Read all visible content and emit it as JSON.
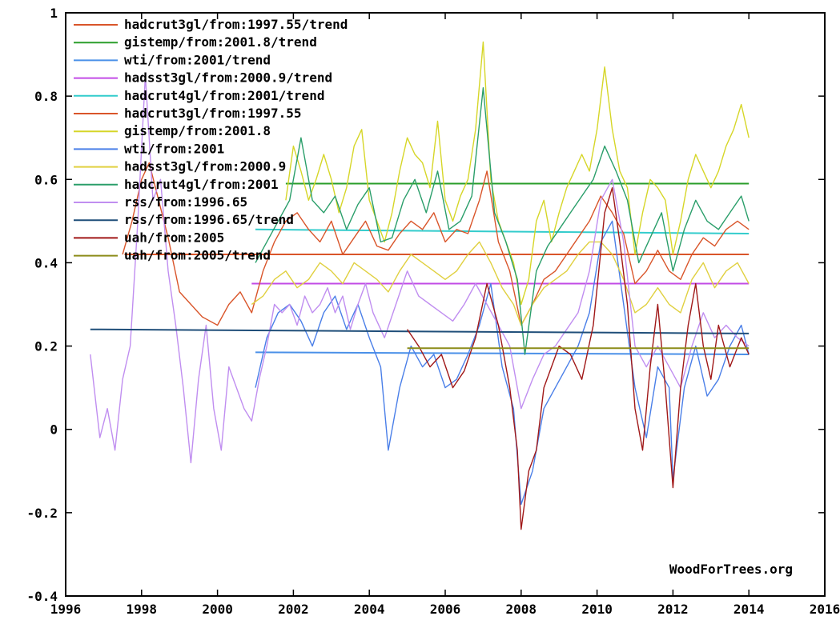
{
  "chart_data": {
    "type": "line",
    "title": "",
    "xlabel": "",
    "ylabel": "",
    "xlim": [
      1996,
      2016
    ],
    "ylim": [
      -0.4,
      1
    ],
    "x_ticks": [
      1996,
      1998,
      2000,
      2002,
      2004,
      2006,
      2008,
      2010,
      2012,
      2014,
      2016
    ],
    "y_ticks": [
      -0.4,
      -0.2,
      0,
      0.2,
      0.4,
      0.6,
      0.8,
      1
    ],
    "y_tick_labels": [
      "-0.4",
      "-0.2",
      "0",
      "0.2",
      "0.4",
      "0.6",
      "0.8",
      "1"
    ],
    "grid": false,
    "legend_position": "top-left",
    "watermark": "WoodForTrees.org",
    "series": [
      {
        "name": "hadcrut3gl/from:1997.55/trend",
        "color": "#d9552a",
        "kind": "trend",
        "x": [
          1997.55,
          2014.0
        ],
        "y": [
          0.42,
          0.42
        ]
      },
      {
        "name": "gistemp/from:2001.8/trend",
        "color": "#2a9e2a",
        "kind": "trend",
        "x": [
          2001.8,
          2014.0
        ],
        "y": [
          0.59,
          0.59
        ]
      },
      {
        "name": "wti/from:2001/trend",
        "color": "#4a90e8",
        "kind": "trend",
        "x": [
          2001.0,
          2014.0
        ],
        "y": [
          0.185,
          0.18
        ]
      },
      {
        "name": "hadsst3gl/from:2000.9/trend",
        "color": "#c24be6",
        "kind": "trend",
        "x": [
          2000.9,
          2014.0
        ],
        "y": [
          0.35,
          0.35
        ]
      },
      {
        "name": "hadcrut4gl/from:2001/trend",
        "color": "#33cccc",
        "kind": "trend",
        "x": [
          2001.0,
          2014.0
        ],
        "y": [
          0.48,
          0.47
        ]
      },
      {
        "name": "hadcrut3gl/from:1997.55",
        "color": "#d9552a",
        "kind": "data",
        "x": [
          1997.5,
          1997.75,
          1998.0,
          1998.2,
          1998.45,
          1998.7,
          1999.0,
          1999.3,
          1999.6,
          2000.0,
          2000.3,
          2000.6,
          2000.9,
          2001.2,
          2001.5,
          2001.8,
          2002.1,
          2002.4,
          2002.7,
          2003.0,
          2003.3,
          2003.6,
          2003.9,
          2004.2,
          2004.5,
          2004.8,
          2005.1,
          2005.4,
          2005.7,
          2006.0,
          2006.3,
          2006.6,
          2006.9,
          2007.1,
          2007.4,
          2007.7,
          2008.0,
          2008.3,
          2008.6,
          2008.9,
          2009.2,
          2009.5,
          2009.8,
          2010.1,
          2010.4,
          2010.7,
          2011.0,
          2011.3,
          2011.6,
          2011.9,
          2012.2,
          2012.5,
          2012.8,
          2013.1,
          2013.4,
          2013.7,
          2014.0
        ],
        "y": [
          0.42,
          0.5,
          0.6,
          0.64,
          0.55,
          0.46,
          0.33,
          0.3,
          0.27,
          0.25,
          0.3,
          0.33,
          0.28,
          0.38,
          0.45,
          0.5,
          0.52,
          0.48,
          0.45,
          0.5,
          0.42,
          0.46,
          0.5,
          0.44,
          0.43,
          0.47,
          0.5,
          0.48,
          0.52,
          0.45,
          0.48,
          0.47,
          0.55,
          0.62,
          0.45,
          0.38,
          0.25,
          0.3,
          0.36,
          0.38,
          0.42,
          0.46,
          0.5,
          0.56,
          0.52,
          0.47,
          0.35,
          0.38,
          0.43,
          0.38,
          0.36,
          0.42,
          0.46,
          0.44,
          0.48,
          0.5,
          0.48
        ]
      },
      {
        "name": "gistemp/from:2001.8",
        "color": "#d6d628",
        "kind": "data",
        "x": [
          2001.8,
          2002.0,
          2002.2,
          2002.4,
          2002.6,
          2002.8,
          2003.0,
          2003.2,
          2003.4,
          2003.6,
          2003.8,
          2004.0,
          2004.2,
          2004.4,
          2004.6,
          2004.8,
          2005.0,
          2005.2,
          2005.4,
          2005.6,
          2005.8,
          2006.0,
          2006.2,
          2006.4,
          2006.6,
          2006.8,
          2007.0,
          2007.2,
          2007.4,
          2007.6,
          2007.8,
          2008.0,
          2008.2,
          2008.4,
          2008.6,
          2008.8,
          2009.0,
          2009.2,
          2009.4,
          2009.6,
          2009.8,
          2010.0,
          2010.2,
          2010.4,
          2010.6,
          2010.8,
          2011.0,
          2011.2,
          2011.4,
          2011.6,
          2011.8,
          2012.0,
          2012.2,
          2012.4,
          2012.6,
          2012.8,
          2013.0,
          2013.2,
          2013.4,
          2013.6,
          2013.8,
          2014.0
        ],
        "y": [
          0.55,
          0.68,
          0.62,
          0.55,
          0.6,
          0.66,
          0.6,
          0.52,
          0.58,
          0.68,
          0.72,
          0.55,
          0.5,
          0.45,
          0.52,
          0.62,
          0.7,
          0.66,
          0.64,
          0.58,
          0.74,
          0.55,
          0.5,
          0.56,
          0.6,
          0.72,
          0.93,
          0.6,
          0.5,
          0.45,
          0.4,
          0.3,
          0.36,
          0.5,
          0.55,
          0.45,
          0.52,
          0.58,
          0.62,
          0.66,
          0.62,
          0.72,
          0.87,
          0.72,
          0.62,
          0.58,
          0.42,
          0.52,
          0.6,
          0.58,
          0.55,
          0.42,
          0.5,
          0.6,
          0.66,
          0.62,
          0.58,
          0.62,
          0.68,
          0.72,
          0.78,
          0.7
        ]
      },
      {
        "name": "wti/from:2001",
        "color": "#4a7fe8",
        "kind": "data",
        "x": [
          2001.0,
          2001.3,
          2001.6,
          2001.9,
          2002.2,
          2002.5,
          2002.8,
          2003.1,
          2003.4,
          2003.7,
          2004.0,
          2004.3,
          2004.5,
          2004.8,
          2005.1,
          2005.4,
          2005.7,
          2006.0,
          2006.3,
          2006.6,
          2006.9,
          2007.2,
          2007.5,
          2007.8,
          2008.0,
          2008.3,
          2008.6,
          2008.9,
          2009.2,
          2009.5,
          2009.8,
          2010.1,
          2010.4,
          2010.7,
          2011.0,
          2011.3,
          2011.6,
          2011.9,
          2012.0,
          2012.3,
          2012.6,
          2012.9,
          2013.2,
          2013.5,
          2013.8,
          2014.0
        ],
        "y": [
          0.1,
          0.22,
          0.28,
          0.3,
          0.26,
          0.2,
          0.28,
          0.32,
          0.24,
          0.3,
          0.22,
          0.15,
          -0.05,
          0.1,
          0.2,
          0.15,
          0.18,
          0.1,
          0.12,
          0.18,
          0.25,
          0.35,
          0.15,
          0.05,
          -0.18,
          -0.1,
          0.05,
          0.1,
          0.15,
          0.2,
          0.28,
          0.45,
          0.5,
          0.3,
          0.1,
          -0.02,
          0.15,
          0.1,
          -0.12,
          0.1,
          0.2,
          0.08,
          0.12,
          0.2,
          0.25,
          0.18
        ]
      },
      {
        "name": "hadsst3gl/from:2000.9",
        "color": "#e0d040",
        "kind": "data",
        "x": [
          2000.9,
          2001.2,
          2001.5,
          2001.8,
          2002.1,
          2002.4,
          2002.7,
          2003.0,
          2003.3,
          2003.6,
          2003.9,
          2004.2,
          2004.5,
          2004.8,
          2005.1,
          2005.4,
          2005.7,
          2006.0,
          2006.3,
          2006.6,
          2006.9,
          2007.2,
          2007.5,
          2007.8,
          2008.0,
          2008.3,
          2008.6,
          2008.9,
          2009.2,
          2009.5,
          2009.8,
          2010.1,
          2010.4,
          2010.7,
          2011.0,
          2011.3,
          2011.6,
          2011.9,
          2012.2,
          2012.5,
          2012.8,
          2013.1,
          2013.4,
          2013.7,
          2014.0
        ],
        "y": [
          0.3,
          0.32,
          0.36,
          0.38,
          0.34,
          0.36,
          0.4,
          0.38,
          0.35,
          0.4,
          0.38,
          0.36,
          0.33,
          0.38,
          0.42,
          0.4,
          0.38,
          0.36,
          0.38,
          0.42,
          0.45,
          0.4,
          0.34,
          0.3,
          0.25,
          0.3,
          0.34,
          0.36,
          0.38,
          0.42,
          0.45,
          0.45,
          0.42,
          0.36,
          0.28,
          0.3,
          0.34,
          0.3,
          0.28,
          0.36,
          0.4,
          0.34,
          0.38,
          0.4,
          0.35
        ]
      },
      {
        "name": "hadcrut4gl/from:2001",
        "color": "#2a9e6a",
        "kind": "data",
        "x": [
          2001.0,
          2001.3,
          2001.6,
          2001.9,
          2002.2,
          2002.5,
          2002.8,
          2003.1,
          2003.4,
          2003.7,
          2004.0,
          2004.3,
          2004.6,
          2004.9,
          2005.2,
          2005.5,
          2005.8,
          2006.1,
          2006.4,
          2006.7,
          2007.0,
          2007.3,
          2007.6,
          2007.9,
          2008.1,
          2008.4,
          2008.7,
          2009.0,
          2009.3,
          2009.6,
          2009.9,
          2010.2,
          2010.5,
          2010.8,
          2011.1,
          2011.4,
          2011.7,
          2012.0,
          2012.3,
          2012.6,
          2012.9,
          2013.2,
          2013.5,
          2013.8,
          2014.0
        ],
        "y": [
          0.4,
          0.45,
          0.5,
          0.55,
          0.7,
          0.55,
          0.52,
          0.56,
          0.48,
          0.54,
          0.58,
          0.45,
          0.46,
          0.55,
          0.6,
          0.52,
          0.62,
          0.48,
          0.5,
          0.56,
          0.82,
          0.52,
          0.45,
          0.36,
          0.18,
          0.38,
          0.44,
          0.48,
          0.52,
          0.56,
          0.6,
          0.68,
          0.62,
          0.55,
          0.4,
          0.46,
          0.52,
          0.38,
          0.48,
          0.55,
          0.5,
          0.48,
          0.52,
          0.56,
          0.5
        ]
      },
      {
        "name": "rss/from:1996.65",
        "color": "#c08ef0",
        "kind": "data",
        "x": [
          1996.65,
          1996.9,
          1997.1,
          1997.3,
          1997.5,
          1997.7,
          1997.9,
          1998.1,
          1998.3,
          1998.5,
          1998.7,
          1998.9,
          1999.1,
          1999.3,
          1999.5,
          1999.7,
          1999.9,
          2000.1,
          2000.3,
          2000.5,
          2000.7,
          2000.9,
          2001.1,
          2001.3,
          2001.5,
          2001.7,
          2001.9,
          2002.1,
          2002.3,
          2002.5,
          2002.7,
          2002.9,
          2003.1,
          2003.3,
          2003.5,
          2003.7,
          2003.9,
          2004.1,
          2004.4,
          2004.7,
          2005.0,
          2005.3,
          2005.6,
          2005.9,
          2006.2,
          2006.5,
          2006.8,
          2007.1,
          2007.4,
          2007.7,
          2008.0,
          2008.3,
          2008.6,
          2008.9,
          2009.2,
          2009.5,
          2009.8,
          2010.1,
          2010.4,
          2010.7,
          2011.0,
          2011.3,
          2011.6,
          2011.9,
          2012.2,
          2012.5,
          2012.8,
          2013.1,
          2013.4,
          2013.7,
          2014.0
        ],
        "y": [
          0.18,
          -0.02,
          0.05,
          -0.05,
          0.12,
          0.2,
          0.5,
          0.85,
          0.55,
          0.6,
          0.38,
          0.25,
          0.1,
          -0.08,
          0.12,
          0.25,
          0.05,
          -0.05,
          0.15,
          0.1,
          0.05,
          0.02,
          0.12,
          0.2,
          0.3,
          0.28,
          0.3,
          0.25,
          0.32,
          0.28,
          0.3,
          0.34,
          0.28,
          0.32,
          0.24,
          0.3,
          0.35,
          0.28,
          0.22,
          0.3,
          0.38,
          0.32,
          0.3,
          0.28,
          0.26,
          0.3,
          0.35,
          0.3,
          0.25,
          0.2,
          0.05,
          0.12,
          0.18,
          0.2,
          0.24,
          0.28,
          0.38,
          0.55,
          0.6,
          0.45,
          0.2,
          0.15,
          0.2,
          0.15,
          0.1,
          0.2,
          0.28,
          0.22,
          0.25,
          0.22,
          0.2
        ]
      },
      {
        "name": "rss/from:1996.65/trend",
        "color": "#1f4e79",
        "kind": "trend",
        "x": [
          1996.65,
          2014.0
        ],
        "y": [
          0.24,
          0.23
        ]
      },
      {
        "name": "uah/from:2005",
        "color": "#a01818",
        "kind": "data",
        "x": [
          2005.0,
          2005.3,
          2005.6,
          2005.9,
          2006.2,
          2006.5,
          2006.8,
          2007.1,
          2007.4,
          2007.7,
          2007.9,
          2008.0,
          2008.2,
          2008.4,
          2008.6,
          2008.8,
          2009.0,
          2009.3,
          2009.6,
          2009.9,
          2010.2,
          2010.4,
          2010.6,
          2010.8,
          2011.0,
          2011.2,
          2011.4,
          2011.6,
          2011.8,
          2012.0,
          2012.2,
          2012.4,
          2012.6,
          2012.8,
          2013.0,
          2013.2,
          2013.5,
          2013.8,
          2014.0
        ],
        "y": [
          0.24,
          0.2,
          0.15,
          0.18,
          0.1,
          0.14,
          0.22,
          0.35,
          0.25,
          0.1,
          -0.05,
          -0.24,
          -0.1,
          -0.05,
          0.1,
          0.15,
          0.2,
          0.18,
          0.12,
          0.25,
          0.52,
          0.58,
          0.45,
          0.3,
          0.05,
          -0.05,
          0.15,
          0.3,
          0.1,
          -0.14,
          0.1,
          0.25,
          0.35,
          0.2,
          0.12,
          0.25,
          0.15,
          0.22,
          0.18
        ]
      },
      {
        "name": "uah/from:2005/trend",
        "color": "#8c8c1a",
        "kind": "trend",
        "x": [
          2005.0,
          2014.0
        ],
        "y": [
          0.195,
          0.195
        ]
      }
    ]
  }
}
